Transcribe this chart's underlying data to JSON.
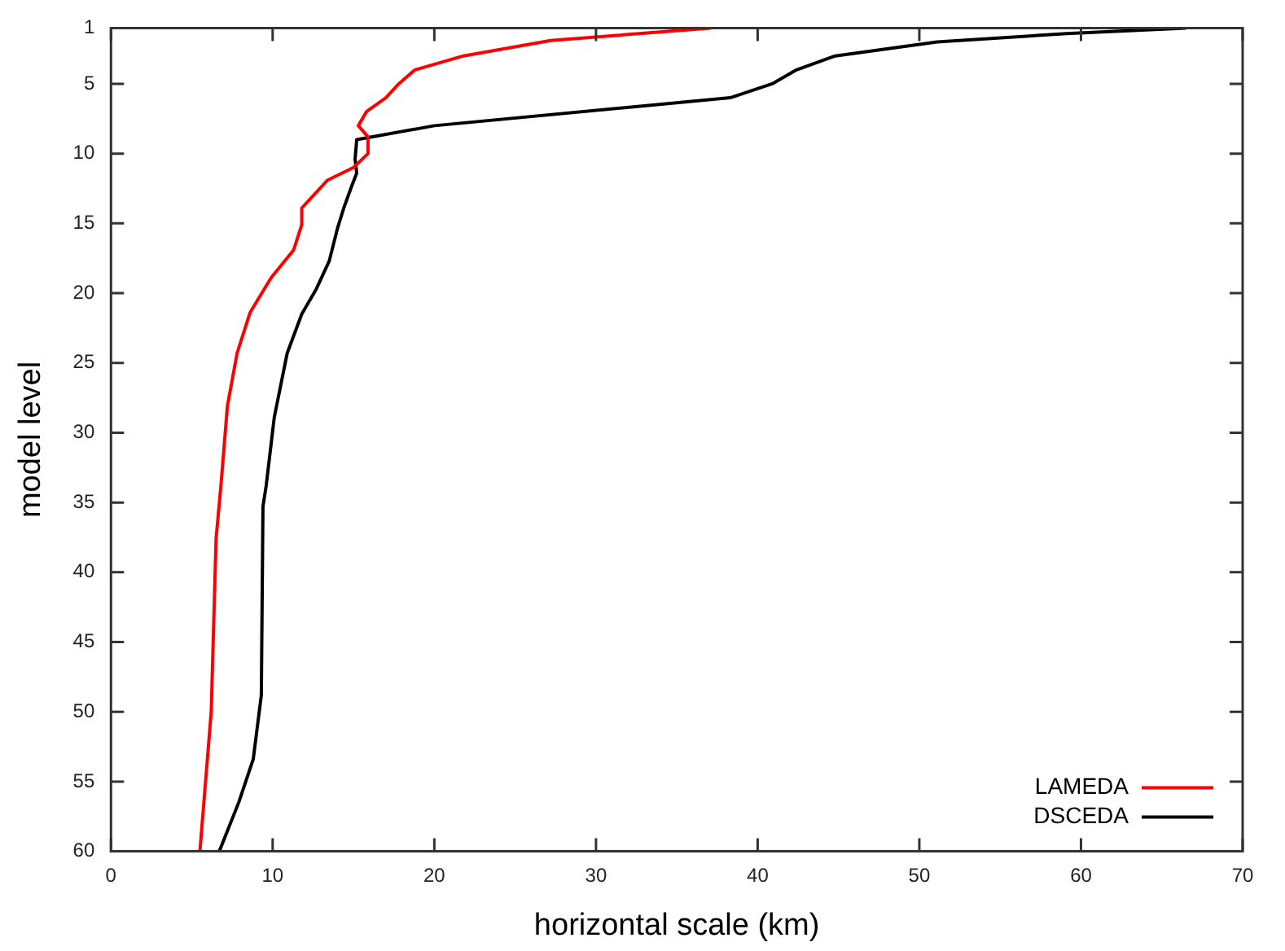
{
  "chart_data": {
    "type": "line",
    "xlabel": "horizontal scale (km)",
    "ylabel": "model level",
    "xlim": [
      0,
      70
    ],
    "xticks": [
      0,
      10,
      20,
      30,
      40,
      50,
      60,
      70
    ],
    "ylim": [
      60,
      1
    ],
    "yticks": [
      1,
      5,
      10,
      15,
      20,
      25,
      30,
      35,
      40,
      45,
      50,
      55,
      60
    ],
    "grid": false,
    "legend": "bottom right",
    "marker": "none",
    "line_style": "solid",
    "series": [
      {
        "name": "LAMEDA",
        "color": "#ff0000",
        "x": [
          37.1,
          27.2,
          21.8,
          18.8,
          17.8,
          17.0,
          15.8,
          15.3,
          15.9,
          15.9,
          15.0,
          13.4,
          11.8,
          11.8,
          11.3,
          9.9,
          8.6,
          7.8,
          7.2,
          6.8,
          6.5,
          6.2,
          5.5
        ],
        "values": [
          1,
          1.9,
          3,
          4,
          5,
          6,
          7,
          8,
          8.8,
          10,
          11,
          11.9,
          13.9,
          15.1,
          16.9,
          18.9,
          21.4,
          24.3,
          28.1,
          33.8,
          37.6,
          50,
          60
        ]
      },
      {
        "name": "DSCEDA",
        "color": "#000000",
        "x": [
          66.5,
          59.1,
          51.1,
          44.8,
          42.4,
          40.9,
          38.3,
          20.0,
          15.2,
          15.1,
          15.2,
          14.9,
          14.4,
          14.0,
          13.5,
          12.7,
          11.8,
          10.9,
          10.1,
          9.6,
          9.4,
          9.3,
          8.8,
          7.9,
          6.7
        ],
        "values": [
          1,
          1.4,
          2,
          3,
          4,
          5,
          6,
          8,
          9,
          10.4,
          11.4,
          12.3,
          13.9,
          15.4,
          17.7,
          19.7,
          21.5,
          24.3,
          28.9,
          33.8,
          35.3,
          48.8,
          53.4,
          56.5,
          60
        ]
      }
    ]
  }
}
